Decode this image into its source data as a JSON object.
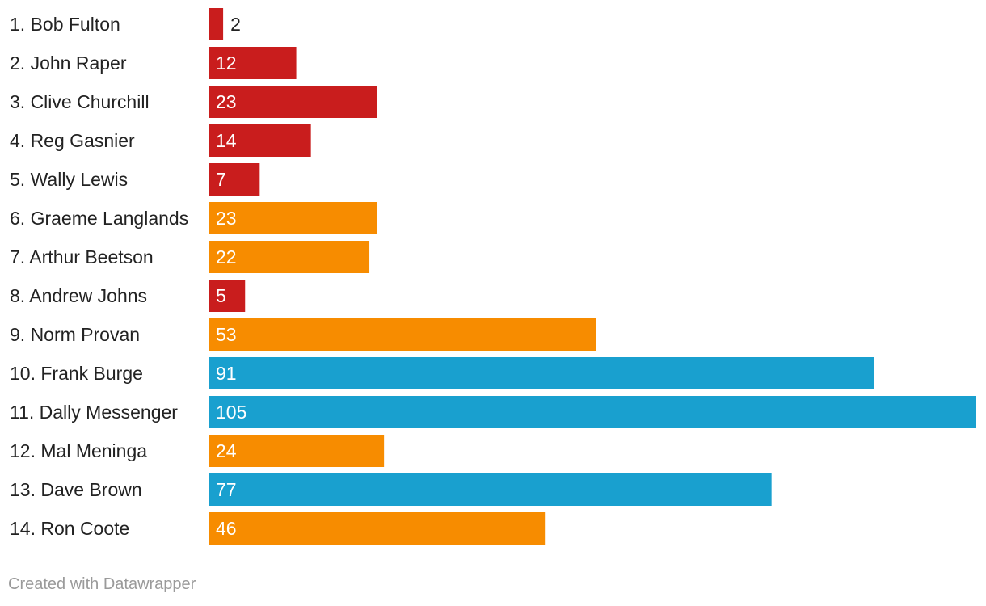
{
  "chart_data": {
    "type": "bar",
    "orientation": "horizontal",
    "categories": [
      "1. Bob Fulton",
      "2. John Raper",
      "3. Clive Churchill",
      "4. Reg Gasnier",
      "5. Wally Lewis",
      "6. Graeme Langlands",
      "7. Arthur Beetson",
      "8. Andrew Johns",
      "9. Norm Provan",
      "10. Frank Burge",
      "11. Dally Messenger",
      "12. Mal Meninga",
      "13. Dave Brown",
      "14. Ron Coote"
    ],
    "values": [
      2,
      12,
      23,
      14,
      7,
      23,
      22,
      5,
      53,
      91,
      105,
      24,
      77,
      46
    ],
    "bar_colors": [
      "#c91d1d",
      "#c91d1d",
      "#c91d1d",
      "#c91d1d",
      "#c91d1d",
      "#f78c00",
      "#f78c00",
      "#c91d1d",
      "#f78c00",
      "#19a0cf",
      "#19a0cf",
      "#f78c00",
      "#19a0cf",
      "#f78c00"
    ],
    "xlim": [
      0,
      105
    ],
    "grid": false,
    "legend": "none",
    "title": "",
    "xlabel": "",
    "ylabel": ""
  },
  "footer": {
    "credit": "Created with Datawrapper"
  }
}
